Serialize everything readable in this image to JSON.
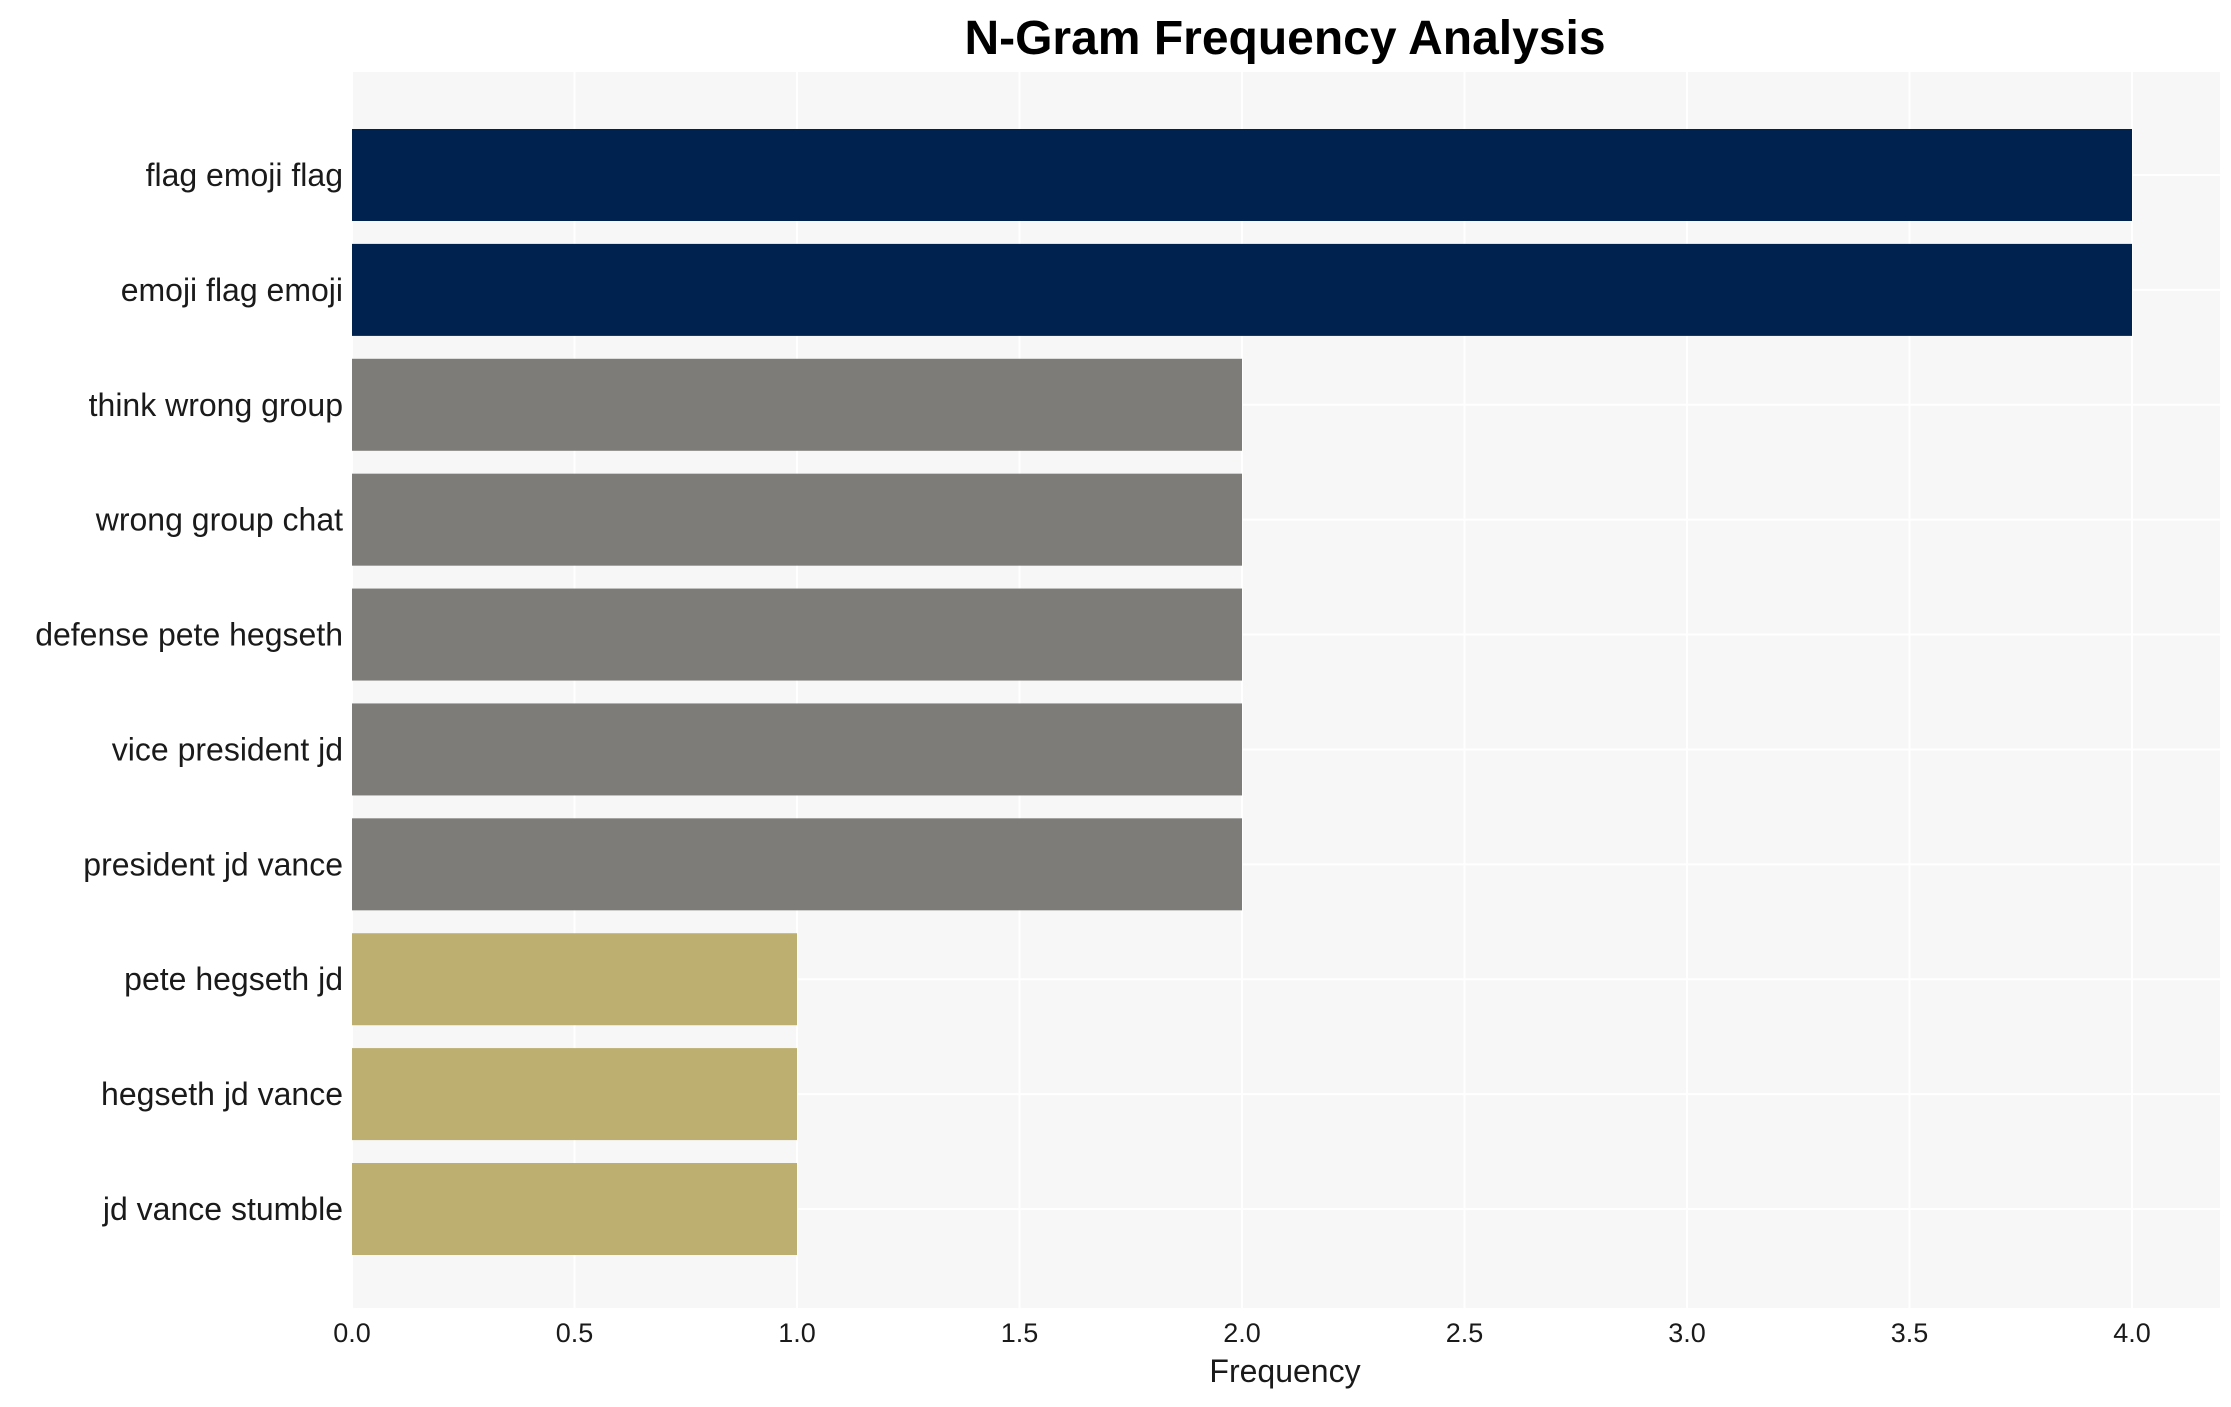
{
  "chart_data": {
    "type": "bar",
    "orientation": "horizontal",
    "title": "N-Gram Frequency Analysis",
    "xlabel": "Frequency",
    "ylabel": "",
    "xlim": [
      0,
      4.2
    ],
    "x_ticks": [
      0,
      0.5,
      1,
      1.5,
      2,
      2.5,
      3,
      3.5,
      4
    ],
    "x_tick_labels": [
      "0.0",
      "0.5",
      "1.0",
      "1.5",
      "2.0",
      "2.5",
      "3.0",
      "3.5",
      "4.0"
    ],
    "grid": true,
    "categories": [
      "flag emoji flag",
      "emoji flag emoji",
      "think wrong group",
      "wrong group chat",
      "defense pete hegseth",
      "vice president jd",
      "president jd vance",
      "pete hegseth jd",
      "hegseth jd vance",
      "jd vance stumble"
    ],
    "values": [
      4,
      4,
      2,
      2,
      2,
      2,
      2,
      1,
      1,
      1
    ],
    "bar_colors": [
      "#00224e",
      "#00224e",
      "#7d7c78",
      "#7d7c78",
      "#7d7c78",
      "#7d7c78",
      "#7d7c78",
      "#bcaf6f",
      "#bcaf6f",
      "#bcaf6f"
    ],
    "plot_background": "#f7f7f8"
  }
}
